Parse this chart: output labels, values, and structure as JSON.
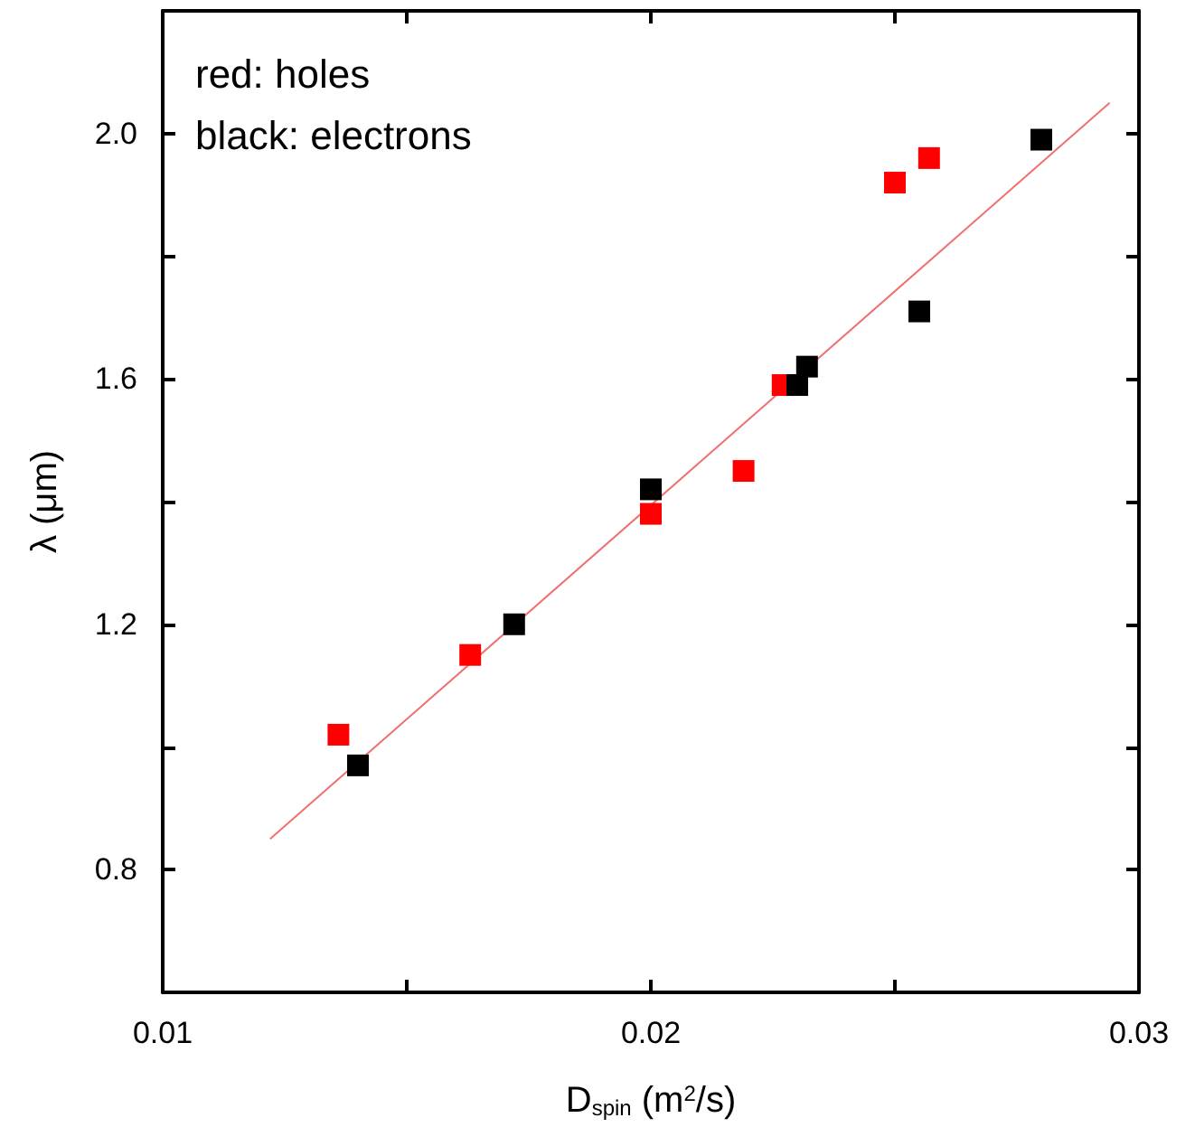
{
  "chart_data": {
    "type": "scatter",
    "xlabel": "D$_{spin}$ (m$^{2}$/s)",
    "ylabel": "λ (μm)",
    "annotations": [
      "red: holes",
      "black: electrons"
    ],
    "marker": "square",
    "grid": false,
    "xlim": [
      0.01,
      0.03
    ],
    "xticks": [
      0.01,
      {
        "value": 0.015,
        "label": null
      },
      0.02,
      {
        "value": 0.025,
        "label": null
      },
      0.03
    ],
    "ylim": [
      0.6,
      2.2
    ],
    "yticks": [
      0.8,
      {
        "value": 1.0,
        "label": null
      },
      1.2,
      {
        "value": 1.4,
        "label": null
      },
      1.6,
      {
        "value": 1.8,
        "label": null
      },
      {
        "value": 2.0,
        "label": "2.0"
      }
    ],
    "series": [
      {
        "color": "#ff0000",
        "x": [
          0.0136,
          0.0163,
          0.02,
          0.0219,
          0.0227,
          0.025,
          0.0257
        ],
        "values": [
          1.02,
          1.15,
          1.38,
          1.45,
          1.59,
          1.92,
          1.96
        ]
      },
      {
        "color": "#000000",
        "x": [
          0.014,
          0.0172,
          0.02,
          0.023,
          0.0232,
          0.0255,
          0.028
        ],
        "values": [
          0.97,
          1.2,
          1.42,
          1.59,
          1.62,
          1.71,
          1.99
        ]
      },
      {
        "type": "line",
        "marker": "none",
        "color": "#f07070",
        "x": [
          0.0122,
          0.0294
        ],
        "values": [
          0.85,
          2.05
        ]
      }
    ]
  }
}
